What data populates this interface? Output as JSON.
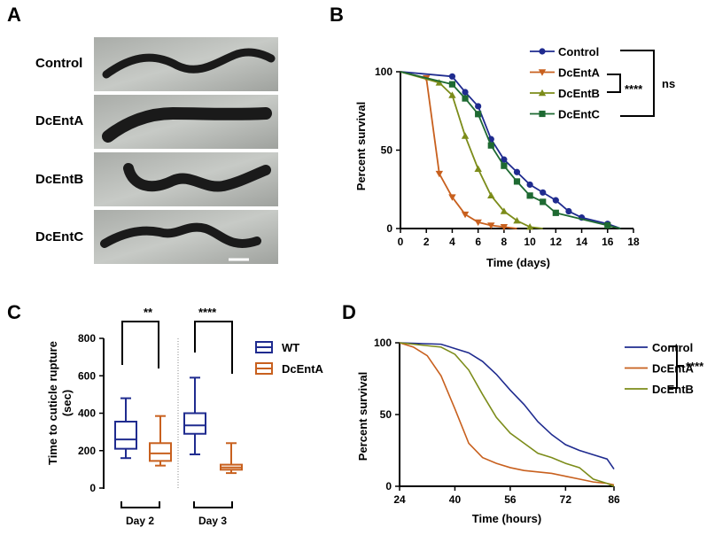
{
  "panels": {
    "A": {
      "letter": "A",
      "labels": [
        "Control",
        "DcEntA",
        "DcEntB",
        "DcEntC"
      ]
    },
    "B": {
      "letter": "B",
      "significance": [
        "****",
        "ns"
      ]
    },
    "C": {
      "letter": "C",
      "significance": [
        "**",
        "****"
      ]
    },
    "D": {
      "letter": "D",
      "significance": [
        "****"
      ]
    }
  },
  "colors": {
    "control": "#1f2b8f",
    "dcEntA": "#c8601e",
    "dcEntB": "#7c8c1a",
    "dcEntC": "#1e6a32",
    "wt": "#1f2b8f"
  },
  "chart_data": [
    {
      "id": "B",
      "type": "line",
      "xlabel": "Time (days)",
      "ylabel": "Percent survival",
      "xlim": [
        0,
        18
      ],
      "ylim": [
        0,
        100
      ],
      "xticks": [
        0,
        2,
        4,
        6,
        8,
        10,
        12,
        14,
        16,
        18
      ],
      "yticks": [
        0,
        50,
        100
      ],
      "legend_position": "top-right",
      "series": [
        {
          "name": "Control",
          "color": "#1f2b8f",
          "marker": "circle",
          "x": [
            0,
            4,
            5,
            6,
            7,
            8,
            9,
            10,
            11,
            12,
            13,
            14,
            16,
            17
          ],
          "y": [
            100,
            97,
            87,
            78,
            57,
            44,
            36,
            28,
            23,
            18,
            11,
            7,
            3,
            0
          ]
        },
        {
          "name": "DcEntA",
          "color": "#c8601e",
          "marker": "triangle-down",
          "x": [
            0,
            2,
            3,
            4,
            5,
            6,
            7,
            8,
            9
          ],
          "y": [
            100,
            96,
            35,
            20,
            9,
            4,
            2,
            1,
            0
          ]
        },
        {
          "name": "DcEntB",
          "color": "#7c8c1a",
          "marker": "triangle-up",
          "x": [
            0,
            3,
            4,
            5,
            6,
            7,
            8,
            9,
            10,
            11
          ],
          "y": [
            100,
            93,
            85,
            59,
            38,
            21,
            11,
            5,
            1,
            0
          ]
        },
        {
          "name": "DcEntC",
          "color": "#1e6a32",
          "marker": "square",
          "x": [
            0,
            4,
            5,
            6,
            7,
            8,
            9,
            10,
            11,
            12,
            16,
            17
          ],
          "y": [
            100,
            92,
            83,
            73,
            53,
            40,
            30,
            21,
            17,
            10,
            2,
            0
          ]
        }
      ]
    },
    {
      "id": "C",
      "type": "box",
      "ylabel": "Time to cuticle rupture\n(sec)",
      "ylim": [
        0,
        800
      ],
      "yticks": [
        0,
        200,
        400,
        600,
        800
      ],
      "categories": [
        "Day 2",
        "Day 3"
      ],
      "legend_position": "top-right",
      "series": [
        {
          "name": "WT",
          "color": "#1f2b8f",
          "boxes": [
            {
              "min": 160,
              "q1": 210,
              "median": 260,
              "q3": 355,
              "max": 480
            },
            {
              "min": 180,
              "q1": 290,
              "median": 335,
              "q3": 400,
              "max": 590
            }
          ]
        },
        {
          "name": "DcEntA",
          "color": "#c8601e",
          "boxes": [
            {
              "min": 120,
              "q1": 145,
              "median": 185,
              "q3": 240,
              "max": 385
            },
            {
              "min": 80,
              "q1": 98,
              "median": 110,
              "q3": 125,
              "max": 240
            }
          ]
        }
      ]
    },
    {
      "id": "D",
      "type": "line",
      "xlabel": "Time (hours)",
      "ylabel": "Percent survival",
      "xlim": [
        24,
        86
      ],
      "ylim": [
        0,
        100
      ],
      "xticks": [
        24,
        40,
        56,
        72,
        86
      ],
      "yticks": [
        0,
        50,
        100
      ],
      "legend_position": "top-right",
      "series": [
        {
          "name": "Control",
          "color": "#1f2b8f",
          "x": [
            24,
            36,
            40,
            44,
            48,
            52,
            56,
            60,
            64,
            68,
            72,
            76,
            80,
            84,
            86
          ],
          "y": [
            100,
            99,
            96,
            93,
            87,
            78,
            67,
            57,
            45,
            36,
            29,
            25,
            22,
            19,
            12
          ]
        },
        {
          "name": "DcEntA",
          "color": "#c8601e",
          "x": [
            24,
            28,
            32,
            36,
            40,
            44,
            48,
            52,
            56,
            60,
            64,
            68,
            72,
            76,
            80,
            84,
            86
          ],
          "y": [
            100,
            97,
            91,
            77,
            54,
            30,
            20,
            16,
            13,
            11,
            10,
            9,
            7,
            5,
            3,
            2,
            1
          ]
        },
        {
          "name": "DcEntB",
          "color": "#7c8c1a",
          "x": [
            24,
            36,
            40,
            44,
            48,
            52,
            56,
            60,
            64,
            68,
            72,
            76,
            80,
            84,
            86
          ],
          "y": [
            100,
            97,
            92,
            81,
            64,
            48,
            37,
            30,
            23,
            20,
            16,
            13,
            5,
            2,
            0
          ]
        }
      ]
    }
  ]
}
